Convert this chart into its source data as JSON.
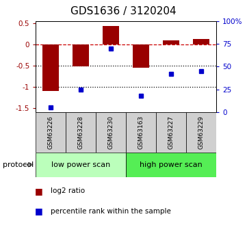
{
  "title": "GDS1636 / 3120204",
  "samples": [
    "GSM63226",
    "GSM63228",
    "GSM63230",
    "GSM63163",
    "GSM63227",
    "GSM63229"
  ],
  "log2_ratio": [
    -1.1,
    -0.52,
    0.43,
    -0.55,
    0.09,
    0.13
  ],
  "percentile_rank": [
    5,
    25,
    70,
    18,
    42,
    45
  ],
  "bar_color": "#990000",
  "dot_color": "#0000cc",
  "ylim_left": [
    -1.6,
    0.55
  ],
  "ylim_right": [
    0,
    100
  ],
  "yticks_left": [
    -1.5,
    -1.0,
    -0.5,
    0.0,
    0.5
  ],
  "yticks_right": [
    0,
    25,
    50,
    75,
    100
  ],
  "hlines": [
    0.0,
    -0.5,
    -1.0
  ],
  "hline_styles": [
    "dashed",
    "dotted",
    "dotted"
  ],
  "hline_colors": [
    "#cc0000",
    "#000000",
    "#000000"
  ],
  "protocol_groups": [
    {
      "label": "low power scan",
      "samples": [
        0,
        1,
        2
      ],
      "color": "#bbffbb"
    },
    {
      "label": "high power scan",
      "samples": [
        3,
        4,
        5
      ],
      "color": "#55ee55"
    }
  ],
  "legend_items": [
    {
      "label": "log2 ratio",
      "color": "#990000"
    },
    {
      "label": "percentile rank within the sample",
      "color": "#0000cc"
    }
  ],
  "protocol_label": "protocol",
  "bar_width": 0.55,
  "background_color": "#ffffff",
  "plot_bg_color": "#ffffff",
  "title_fontsize": 11,
  "tick_fontsize": 7.5,
  "sample_fontsize": 6.5,
  "protocol_fontsize": 8,
  "legend_fontsize": 7.5
}
